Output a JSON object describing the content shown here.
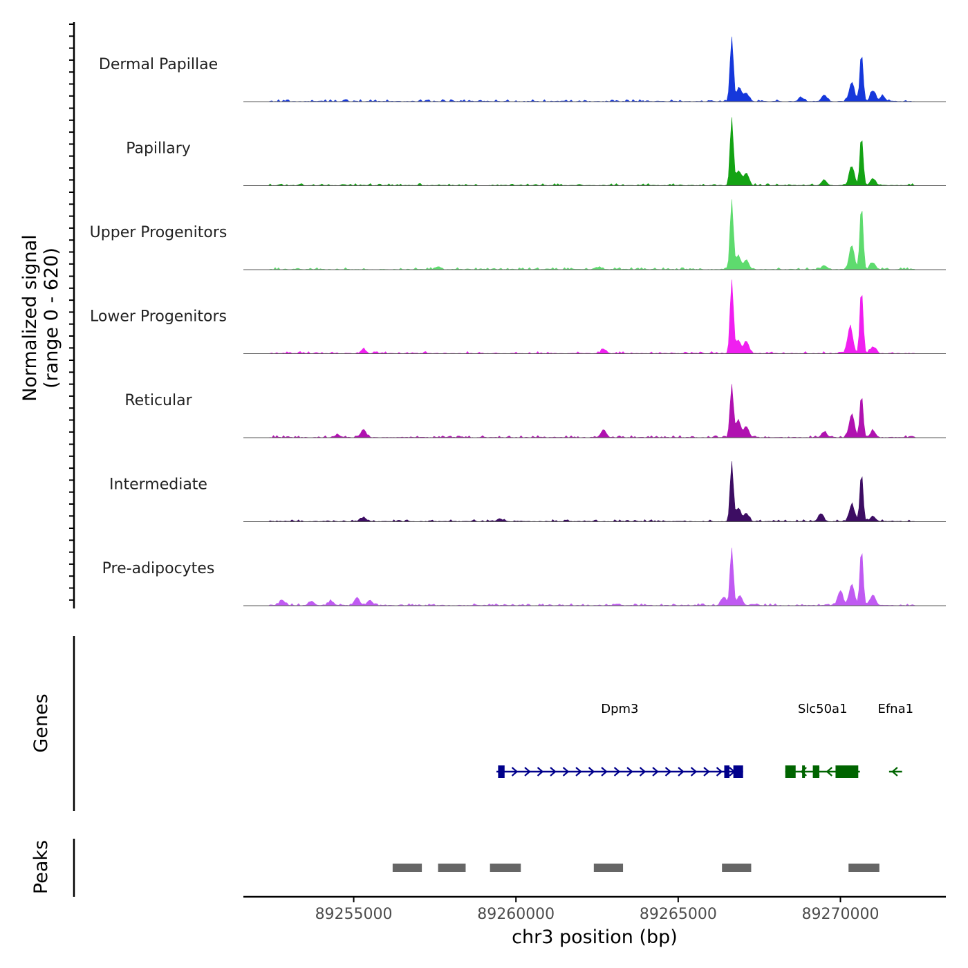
{
  "chart_data": {
    "type": "area",
    "ylabel_line1": "Normalized signal",
    "ylabel_line2": "(range 0 - 620)",
    "xlabel": "chr3 position (bp)",
    "xlim": [
      89251600,
      89273250
    ],
    "x_ticks": [
      89255000,
      89260000,
      89265000,
      89270000
    ],
    "x_tick_labels": [
      "89255000",
      "89260000",
      "89265000",
      "89270000"
    ],
    "signal_range": [
      0,
      620
    ],
    "tracks": [
      {
        "name": "Dermal Papillae",
        "color": "#1638db"
      },
      {
        "name": "Papillary",
        "color": "#14a314"
      },
      {
        "name": "Upper Progenitors",
        "color": "#5edb6e"
      },
      {
        "name": "Lower Progenitors",
        "color": "#f01ff0"
      },
      {
        "name": "Reticular",
        "color": "#b012b0"
      },
      {
        "name": "Intermediate",
        "color": "#3d0d63"
      },
      {
        "name": "Pre-adipocytes",
        "color": "#c05af2"
      }
    ],
    "track_peaks": [
      [
        [
          89266650,
          95
        ],
        [
          89266880,
          20
        ],
        [
          89267100,
          12
        ],
        [
          89268800,
          5
        ],
        [
          89269500,
          10
        ],
        [
          89270350,
          28
        ],
        [
          89270650,
          72
        ],
        [
          89271000,
          16
        ],
        [
          89271300,
          8
        ]
      ],
      [
        [
          89266650,
          100
        ],
        [
          89266860,
          22
        ],
        [
          89267100,
          18
        ],
        [
          89269500,
          8
        ],
        [
          89270350,
          28
        ],
        [
          89270650,
          72
        ],
        [
          89271000,
          10
        ]
      ],
      [
        [
          89266650,
          100
        ],
        [
          89266850,
          20
        ],
        [
          89267100,
          14
        ],
        [
          89269500,
          6
        ],
        [
          89270350,
          34
        ],
        [
          89270650,
          95
        ],
        [
          89271000,
          10
        ],
        [
          89257600,
          4
        ],
        [
          89262500,
          3
        ]
      ],
      [
        [
          89266650,
          108
        ],
        [
          89266850,
          20
        ],
        [
          89267100,
          18
        ],
        [
          89270300,
          40
        ],
        [
          89270650,
          95
        ],
        [
          89271000,
          10
        ],
        [
          89255300,
          6
        ],
        [
          89262700,
          6
        ]
      ],
      [
        [
          89266650,
          78
        ],
        [
          89266850,
          25
        ],
        [
          89267100,
          16
        ],
        [
          89269500,
          8
        ],
        [
          89270350,
          35
        ],
        [
          89270650,
          64
        ],
        [
          89271000,
          10
        ],
        [
          89255300,
          12
        ],
        [
          89262700,
          12
        ],
        [
          89254500,
          4
        ]
      ],
      [
        [
          89266650,
          86
        ],
        [
          89266850,
          20
        ],
        [
          89267100,
          12
        ],
        [
          89269400,
          12
        ],
        [
          89270350,
          25
        ],
        [
          89270650,
          70
        ],
        [
          89271000,
          8
        ],
        [
          89255300,
          6
        ],
        [
          89259500,
          4
        ]
      ],
      [
        [
          89266650,
          85
        ],
        [
          89266400,
          12
        ],
        [
          89266900,
          15
        ],
        [
          89270000,
          22
        ],
        [
          89270350,
          32
        ],
        [
          89270650,
          84
        ],
        [
          89271000,
          16
        ],
        [
          89255100,
          12
        ],
        [
          89255500,
          8
        ],
        [
          89252800,
          8
        ],
        [
          89253700,
          6
        ],
        [
          89254300,
          6
        ]
      ]
    ],
    "genes": [
      {
        "name": "Dpm3",
        "strand": "+",
        "start": 89259400,
        "end": 89267000,
        "color": "#00008b",
        "exons": [
          [
            89259450,
            89259650
          ],
          [
            89266420,
            89266580
          ],
          [
            89266700,
            89267000
          ]
        ]
      },
      {
        "name": "Slc50a1",
        "strand": "-",
        "start": 89268300,
        "end": 89270600,
        "color": "#006400",
        "exons": [
          [
            89268300,
            89268620
          ],
          [
            89268820,
            89268900
          ],
          [
            89269150,
            89269350
          ],
          [
            89269850,
            89270550
          ]
        ]
      },
      {
        "name": "Efna1",
        "strand": "-",
        "start": 89271500,
        "end": 89271900,
        "color": "#006400",
        "exons": []
      }
    ],
    "peaks": [
      [
        89256200,
        89257100
      ],
      [
        89257600,
        89258450
      ],
      [
        89259200,
        89260150
      ],
      [
        89262400,
        89263300
      ],
      [
        89266350,
        89267250
      ],
      [
        89270250,
        89271200
      ]
    ],
    "panel_labels": {
      "genes": "Genes",
      "peaks": "Peaks"
    },
    "peak_color": "#666666"
  }
}
